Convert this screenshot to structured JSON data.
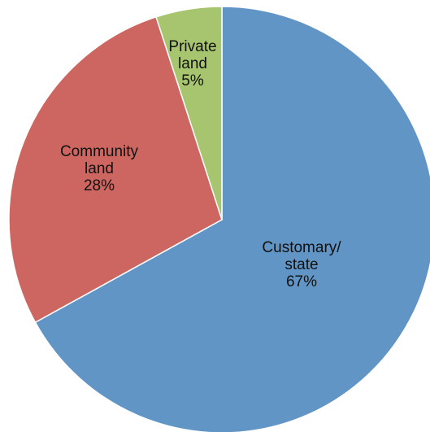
{
  "chart_data": {
    "type": "pie",
    "start": "12 o'clock",
    "direction": "clockwise",
    "slices": [
      {
        "label_lines": [
          "Customary/",
          "state"
        ],
        "value": 67,
        "value_label": "67%",
        "color": "#6195c6"
      },
      {
        "label_lines": [
          "Community",
          "land"
        ],
        "value": 28,
        "value_label": "28%",
        "color": "#cd6660"
      },
      {
        "label_lines": [
          "Private",
          "land"
        ],
        "value": 5,
        "value_label": "5%",
        "color": "#a7c46f"
      }
    ]
  }
}
